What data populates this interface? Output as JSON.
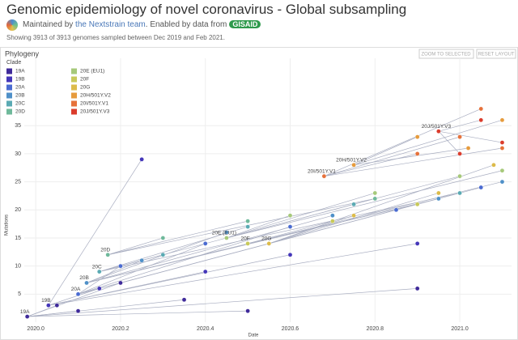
{
  "header": {
    "title": "Genomic epidemiology of novel coronavirus - Global subsampling",
    "maintained_prefix": "Maintained by",
    "maintainer": "the Nextstrain team",
    "enabled": ". Enabled by data from",
    "gisaid": "GISAID",
    "showing": "Showing 3913 of 3913 genomes sampled between Dec 2019 and Feb 2021."
  },
  "panel": {
    "title": "Phylogeny",
    "buttons": [
      "ZOOM TO SELECTED",
      "RESET LAYOUT"
    ]
  },
  "chart_data": {
    "type": "scatter",
    "x_label": "Date",
    "y_label": "Mutations",
    "legend_title": "Clade",
    "xlim": [
      2019.973,
      2021.122
    ],
    "ylim": [
      0,
      47
    ],
    "xticks": [
      {
        "value": 2020.0,
        "label": "2020.0"
      },
      2020.2,
      2020.4,
      2020.6,
      2020.8,
      {
        "value": 2021.0,
        "label": "2021.0"
      }
    ],
    "yticks": [
      5,
      10,
      15,
      20,
      25,
      30,
      35
    ],
    "grid": true,
    "series": [
      {
        "name": "19A",
        "color": "#3f2a9a",
        "x": [
          2019.98,
          2020.05,
          2020.1,
          2020.2,
          2020.35,
          2020.5,
          2020.9
        ],
        "values": [
          1,
          3,
          2,
          7,
          4,
          2,
          6
        ]
      },
      {
        "name": "19B",
        "color": "#4436b9",
        "x": [
          2020.03,
          2020.15,
          2020.25,
          2020.4,
          2020.6,
          2020.9
        ],
        "values": [
          3,
          6,
          29,
          9,
          12,
          14
        ]
      },
      {
        "name": "20A",
        "color": "#4a6bd1",
        "x": [
          2020.1,
          2020.2,
          2020.4,
          2020.6,
          2020.85,
          2021.05
        ],
        "values": [
          5,
          10,
          14,
          17,
          20,
          24
        ]
      },
      {
        "name": "20B",
        "color": "#4f90c8",
        "x": [
          2020.12,
          2020.25,
          2020.45,
          2020.7,
          2020.95,
          2021.1
        ],
        "values": [
          7,
          11,
          16,
          19,
          22,
          25
        ]
      },
      {
        "name": "20C",
        "color": "#5aaab3",
        "x": [
          2020.15,
          2020.3,
          2020.5,
          2020.75,
          2021.0
        ],
        "values": [
          9,
          12,
          17,
          21,
          23
        ]
      },
      {
        "name": "20D",
        "color": "#6fb99b",
        "x": [
          2020.17,
          2020.3,
          2020.5,
          2020.8
        ],
        "values": [
          12,
          15,
          18,
          22
        ]
      },
      {
        "name": "20E (EU1)",
        "color": "#a6c97a",
        "x": [
          2020.45,
          2020.6,
          2020.8,
          2021.0,
          2021.1
        ],
        "values": [
          15,
          19,
          23,
          26,
          27
        ]
      },
      {
        "name": "20F",
        "color": "#c8c95a",
        "x": [
          2020.5,
          2020.7,
          2020.9
        ],
        "values": [
          14,
          18,
          21
        ]
      },
      {
        "name": "20G",
        "color": "#dcbb4a",
        "x": [
          2020.55,
          2020.75,
          2020.95,
          2021.08
        ],
        "values": [
          14,
          19,
          23,
          28
        ]
      },
      {
        "name": "20H/501Y.V2",
        "color": "#e69b3d",
        "x": [
          2020.75,
          2020.9,
          2021.02,
          2021.1
        ],
        "values": [
          28,
          33,
          31,
          36
        ]
      },
      {
        "name": "20I/501Y.V1",
        "color": "#e6713a",
        "x": [
          2020.68,
          2020.9,
          2021.0,
          2021.05,
          2021.1
        ],
        "values": [
          26,
          30,
          33,
          38,
          31
        ]
      },
      {
        "name": "20J/501Y.V3",
        "color": "#db3c2c",
        "x": [
          2020.95,
          2021.0,
          2021.05,
          2021.1
        ],
        "values": [
          34,
          30,
          36,
          32
        ]
      }
    ]
  }
}
